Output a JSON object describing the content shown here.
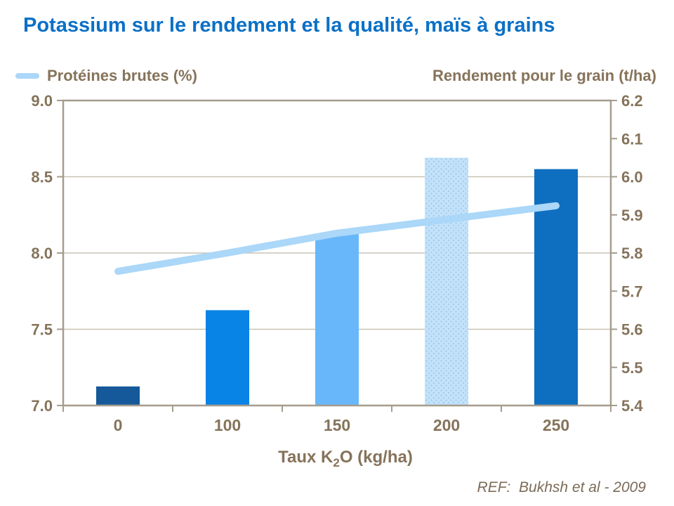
{
  "title": "Potassium sur le rendement et la qualité, maïs à grains",
  "legend": {
    "series_label": "Protéines brutes (%)",
    "right_axis_title": "Rendement pour le grain (t/ha)"
  },
  "footer": {
    "ref": "REF:  Bukhsh et al - 2009"
  },
  "colors": {
    "title": "#0B70C6",
    "axis_text": "#85735A",
    "ref_text": "#7C6B57",
    "border": "#A59C8D",
    "gridline": "#C9C2B5",
    "line": "#ABD7F8",
    "bar_colors": [
      "#15599A",
      "#0883E6",
      "#68B7FA",
      "#C3E2FA",
      "#0E6FC0"
    ],
    "bar_dot_texture_color": "#9FCBEC"
  },
  "chart_data": {
    "type": "combo-bar-line",
    "title": "Potassium sur le rendement et la qualité, maïs à grains",
    "categories": [
      "0",
      "100",
      "150",
      "200",
      "250"
    ],
    "xlabel": "Taux K2O (kg/ha)",
    "xlabel_parts": [
      {
        "t": "Taux K"
      },
      {
        "t": "2",
        "sub": true
      },
      {
        "t": "O (kg/ha)"
      }
    ],
    "left_axis": {
      "label": "Protéines brutes (%)",
      "min": 7.0,
      "max": 9.0,
      "tick_step": 0.5
    },
    "right_axis": {
      "label": "Rendement pour le grain (t/ha)",
      "min": 5.4,
      "max": 6.2,
      "tick_step": 0.1
    },
    "grid": true,
    "legend_position": "top-left",
    "series": [
      {
        "name": "Rendement pour le grain (t/ha)",
        "type": "bar",
        "axis": "right",
        "values": [
          5.45,
          5.65,
          5.85,
          6.05,
          6.02
        ],
        "textures": [
          null,
          null,
          null,
          "dots",
          null
        ]
      },
      {
        "name": "Protéines brutes (%)",
        "type": "line",
        "axis": "left",
        "values": [
          7.88,
          8.0,
          8.13,
          8.22,
          8.31
        ]
      }
    ]
  }
}
